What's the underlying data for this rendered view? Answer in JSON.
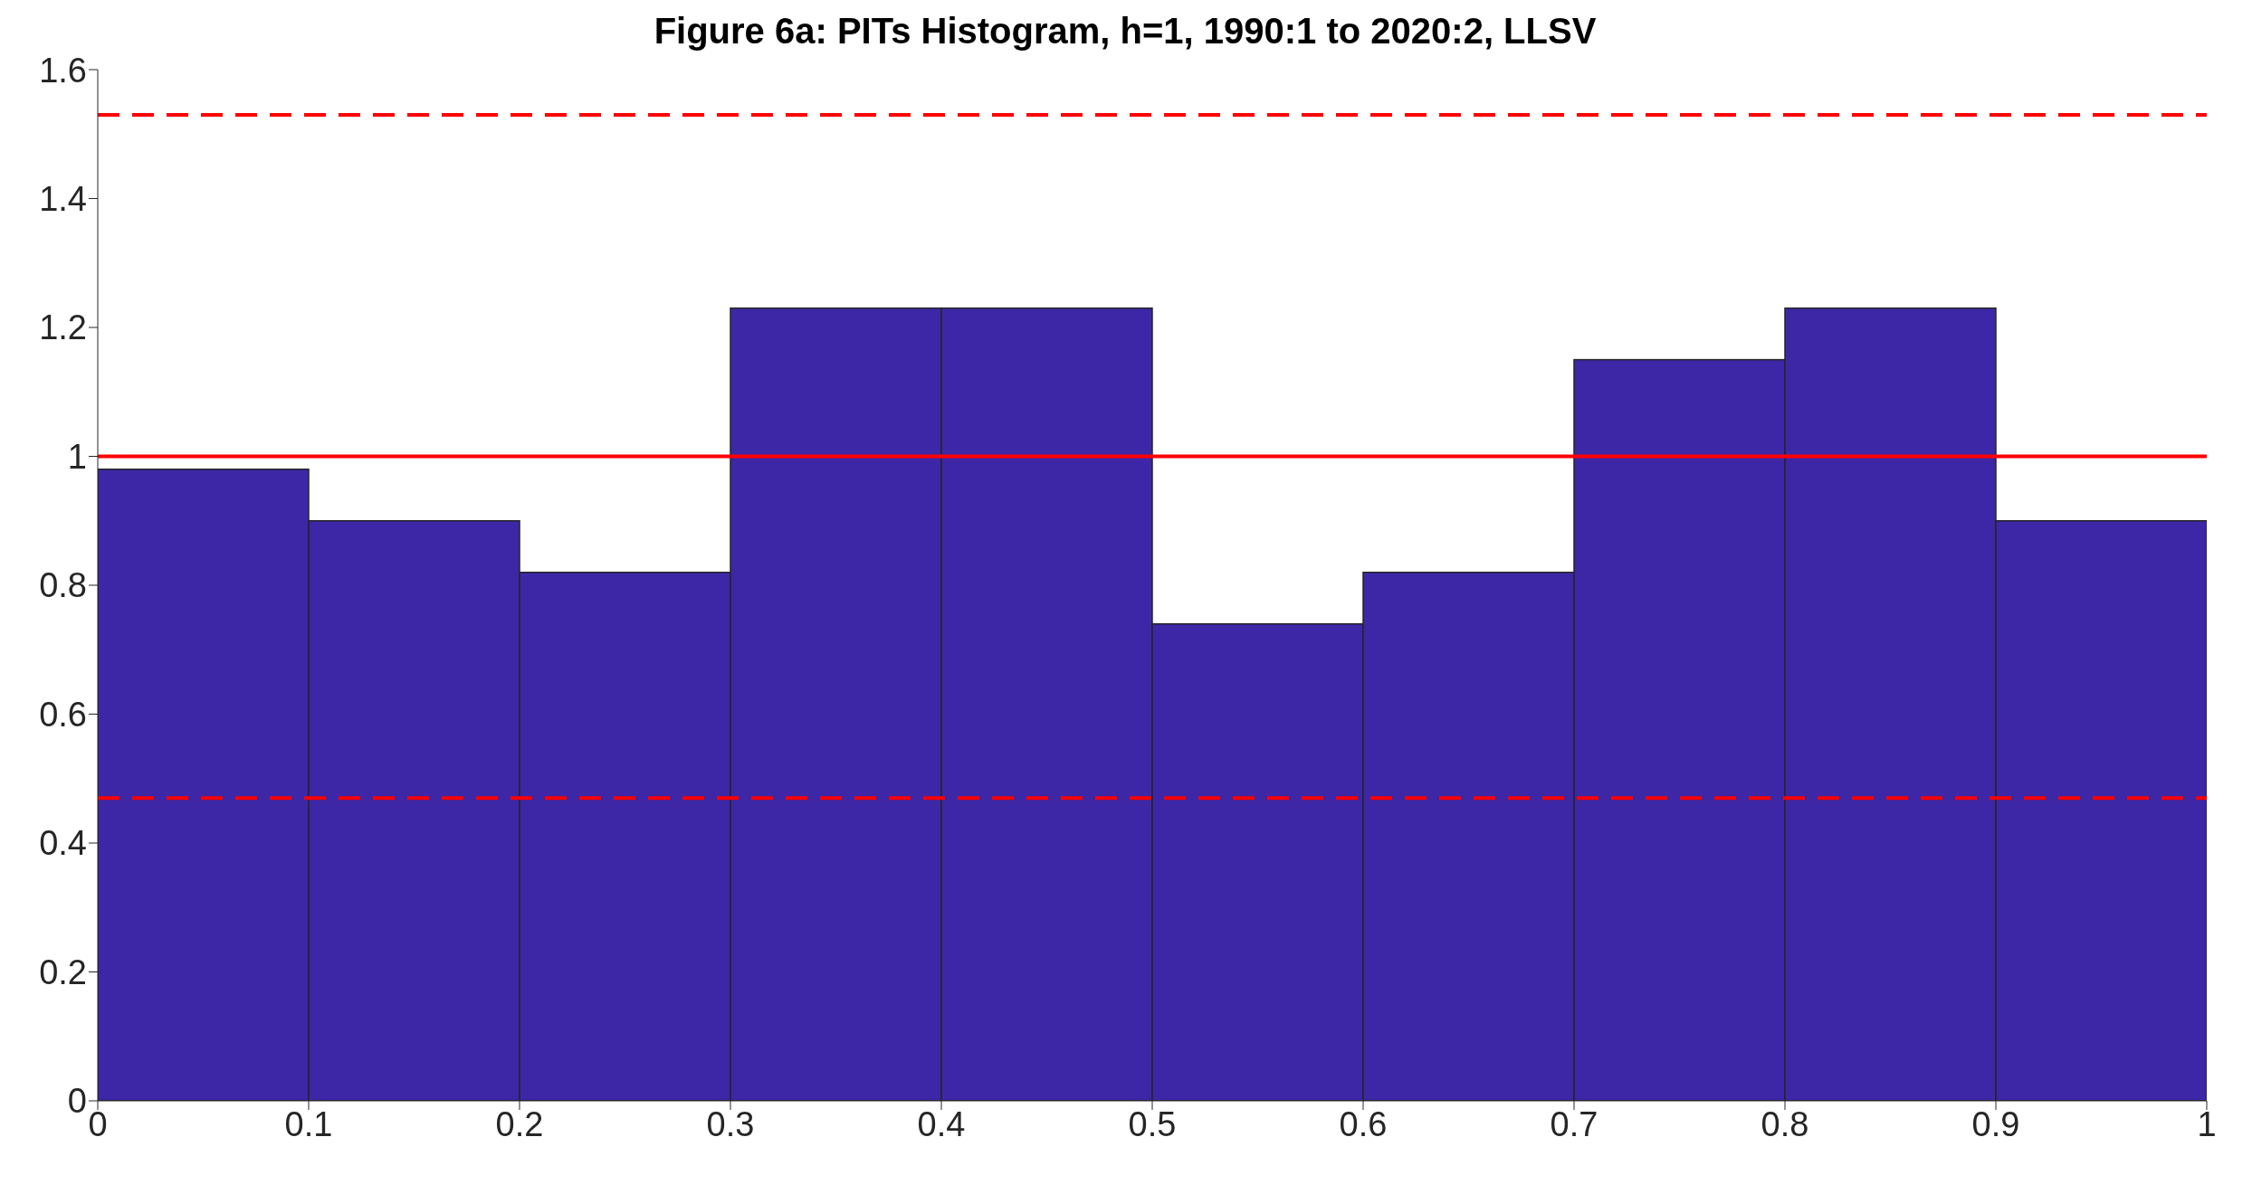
{
  "chart_data": {
    "type": "histogram",
    "title": "Figure 6a: PITs Histogram, h=1, 1990:1 to 2020:2, LLSV",
    "bins": [
      0,
      0.1,
      0.2,
      0.3,
      0.4,
      0.5,
      0.6,
      0.7,
      0.8,
      0.9,
      1
    ],
    "values": [
      0.98,
      0.9,
      0.82,
      1.23,
      1.23,
      0.74,
      0.82,
      1.15,
      1.23,
      0.9
    ],
    "color": "#3d27a6",
    "xlim": [
      0,
      1
    ],
    "xticks": [
      0,
      0.1,
      0.2,
      0.3,
      0.4,
      0.5,
      0.6,
      0.7,
      0.8,
      0.9,
      1
    ],
    "ylim": [
      0,
      1.6
    ],
    "yticks": [
      0,
      0.2,
      0.4,
      0.6,
      0.8,
      1,
      1.2,
      1.4,
      1.6
    ],
    "ref_lines": [
      {
        "axis": "y",
        "value": 1,
        "color": "#ff0000",
        "line_style": "solid"
      },
      {
        "axis": "y",
        "value": 1.53,
        "color": "#ff0000",
        "line_style": "dashed"
      },
      {
        "axis": "y",
        "value": 0.47,
        "color": "#ff0000",
        "line_style": "dashed"
      }
    ],
    "grid": false
  }
}
